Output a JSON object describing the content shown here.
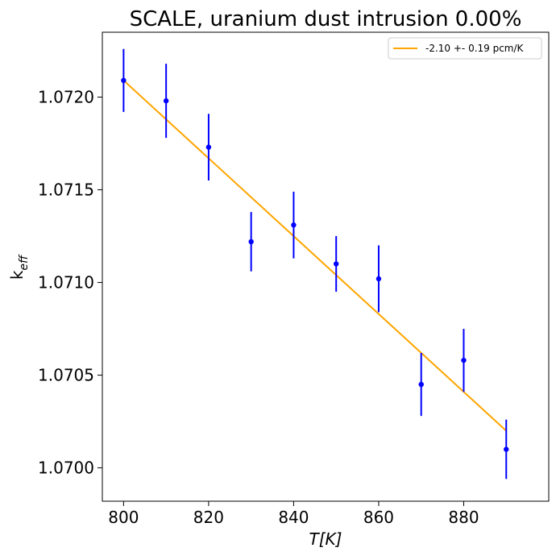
{
  "chart_data": {
    "type": "scatter",
    "title": "SCALE, uranium dust intrusion  0.00%",
    "xlabel": "T[K]",
    "ylabel_main": "k",
    "ylabel_sub": "eff",
    "xlim": [
      795,
      900
    ],
    "ylim": [
      1.06982,
      1.07235
    ],
    "x_ticks": [
      800,
      820,
      840,
      860,
      880
    ],
    "x_tick_labels": [
      "800",
      "820",
      "840",
      "860",
      "880"
    ],
    "y_ticks": [
      1.07,
      1.0705,
      1.071,
      1.0715,
      1.072
    ],
    "y_tick_labels": [
      "1.0700",
      "1.0705",
      "1.0710",
      "1.0715",
      "1.0720"
    ],
    "grid": false,
    "legend_position": "top-right",
    "series": [
      {
        "kind": "errorbar",
        "color": "#0000ff",
        "x": [
          800,
          810,
          820,
          830,
          840,
          850,
          860,
          870,
          880,
          890
        ],
        "y": [
          1.07209,
          1.07198,
          1.07173,
          1.07122,
          1.07131,
          1.0711,
          1.07102,
          1.07045,
          1.07058,
          1.0701
        ],
        "yerr": [
          0.00017,
          0.0002,
          0.00018,
          0.00016,
          0.00018,
          0.00015,
          0.00018,
          0.00017,
          0.00017,
          0.00016
        ]
      },
      {
        "kind": "line",
        "name": "-2.10 +- 0.19 pcm/K",
        "color": "#ffa500",
        "x": [
          800,
          890
        ],
        "y": [
          1.07209,
          1.0702
        ]
      }
    ]
  }
}
